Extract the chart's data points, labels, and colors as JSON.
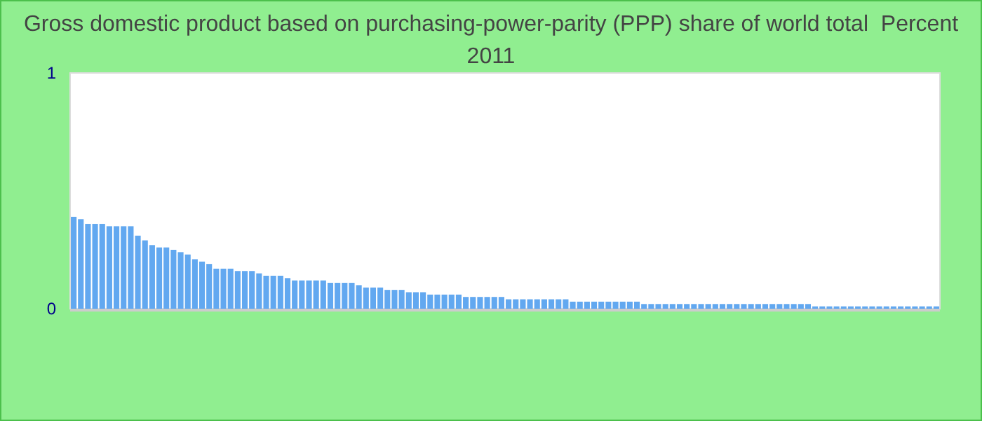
{
  "chart_data": {
    "type": "bar",
    "title": "Gross domestic product based on purchasing-power-parity (PPP) share of world total  Percent 2011",
    "categories": [
      null,
      null,
      null,
      null,
      null,
      null,
      null,
      null,
      null,
      null,
      null,
      null,
      null,
      null,
      null,
      null,
      null,
      null,
      null,
      null,
      null,
      null,
      null,
      null,
      null,
      null,
      null,
      null,
      null,
      null,
      null,
      null,
      null,
      null,
      null,
      null,
      null,
      null,
      null,
      null,
      null,
      null,
      null,
      null,
      null,
      null,
      null,
      null,
      null,
      null,
      null,
      null,
      null,
      null,
      null,
      null,
      null,
      null,
      null,
      null,
      null,
      null,
      null,
      null,
      null,
      null,
      null,
      null,
      null,
      null,
      null,
      null,
      null,
      null,
      null,
      null,
      null,
      null,
      null,
      null,
      null,
      null,
      null,
      null,
      null,
      null,
      null,
      null,
      null,
      null,
      null,
      null,
      null,
      null,
      null,
      null,
      null,
      null,
      null,
      null,
      null,
      null,
      null,
      null,
      null,
      null,
      null,
      null,
      null,
      null,
      null,
      null,
      null,
      null,
      null,
      null,
      null,
      null,
      null,
      null,
      null,
      null
    ],
    "values": [
      0.39,
      0.38,
      0.36,
      0.36,
      0.36,
      0.35,
      0.35,
      0.35,
      0.35,
      0.31,
      0.29,
      0.27,
      0.26,
      0.26,
      0.25,
      0.24,
      0.23,
      0.21,
      0.2,
      0.19,
      0.17,
      0.17,
      0.17,
      0.16,
      0.16,
      0.16,
      0.15,
      0.14,
      0.14,
      0.14,
      0.13,
      0.12,
      0.12,
      0.12,
      0.12,
      0.12,
      0.11,
      0.11,
      0.11,
      0.11,
      0.1,
      0.09,
      0.09,
      0.09,
      0.08,
      0.08,
      0.08,
      0.07,
      0.07,
      0.07,
      0.06,
      0.06,
      0.06,
      0.06,
      0.06,
      0.05,
      0.05,
      0.05,
      0.05,
      0.05,
      0.05,
      0.04,
      0.04,
      0.04,
      0.04,
      0.04,
      0.04,
      0.04,
      0.04,
      0.04,
      0.03,
      0.03,
      0.03,
      0.03,
      0.03,
      0.03,
      0.03,
      0.03,
      0.03,
      0.03,
      0.02,
      0.02,
      0.02,
      0.02,
      0.02,
      0.02,
      0.02,
      0.02,
      0.02,
      0.02,
      0.02,
      0.02,
      0.02,
      0.02,
      0.02,
      0.02,
      0.02,
      0.02,
      0.02,
      0.02,
      0.02,
      0.02,
      0.02,
      0.02,
      0.01,
      0.01,
      0.01,
      0.01,
      0.01,
      0.01,
      0.01,
      0.01,
      0.01,
      0.01,
      0.01,
      0.01,
      0.01,
      0.01,
      0.01,
      0.01,
      0.01,
      0.01
    ],
    "color": "#62a8f0",
    "ylim": [
      0,
      1
    ],
    "yticks": [
      0,
      1
    ]
  }
}
